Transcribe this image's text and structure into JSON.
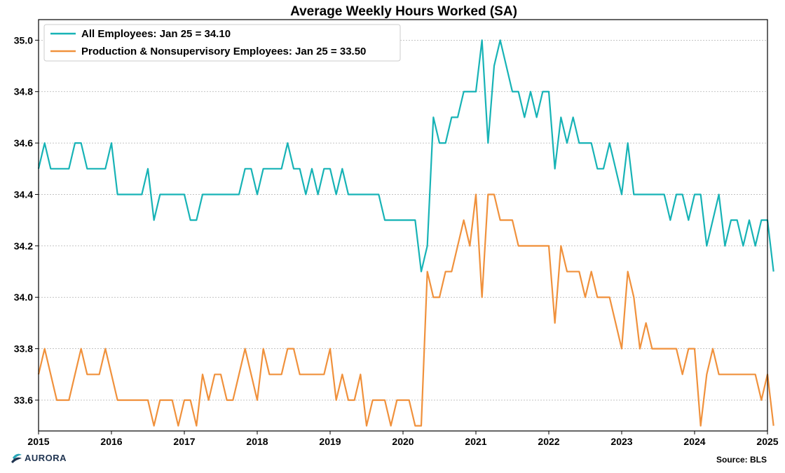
{
  "chart_data": {
    "type": "line",
    "title": "Average Weekly Hours Worked (SA)",
    "xlabel": "",
    "ylabel": "",
    "xlim": [
      2015,
      2025
    ],
    "ylim": [
      33.48,
      35.08
    ],
    "x_ticks": [
      "2015",
      "2016",
      "2017",
      "2018",
      "2019",
      "2020",
      "2021",
      "2022",
      "2023",
      "2024",
      "2025"
    ],
    "y_ticks": [
      "33.6",
      "33.8",
      "34.0",
      "34.2",
      "34.4",
      "34.6",
      "34.8",
      "35.0"
    ],
    "grid": "horizontal dotted",
    "legend_position": "top-left",
    "x_start": "2015-01",
    "x_step": "monthly",
    "series": [
      {
        "name": "All Employees: Jan 25 = 34.10",
        "color": "#17b3b6",
        "values": [
          34.5,
          34.6,
          34.5,
          34.5,
          34.5,
          34.5,
          34.6,
          34.6,
          34.5,
          34.5,
          34.5,
          34.5,
          34.6,
          34.4,
          34.4,
          34.4,
          34.4,
          34.4,
          34.5,
          34.3,
          34.4,
          34.4,
          34.4,
          34.4,
          34.4,
          34.3,
          34.3,
          34.4,
          34.4,
          34.4,
          34.4,
          34.4,
          34.4,
          34.4,
          34.5,
          34.5,
          34.4,
          34.5,
          34.5,
          34.5,
          34.5,
          34.6,
          34.5,
          34.5,
          34.4,
          34.5,
          34.4,
          34.5,
          34.5,
          34.4,
          34.5,
          34.4,
          34.4,
          34.4,
          34.4,
          34.4,
          34.4,
          34.3,
          34.3,
          34.3,
          34.3,
          34.3,
          34.3,
          34.1,
          34.2,
          34.7,
          34.6,
          34.6,
          34.7,
          34.7,
          34.8,
          34.8,
          34.8,
          35.0,
          34.6,
          34.9,
          35.0,
          34.9,
          34.8,
          34.8,
          34.7,
          34.8,
          34.7,
          34.8,
          34.8,
          34.5,
          34.7,
          34.6,
          34.7,
          34.6,
          34.6,
          34.6,
          34.5,
          34.5,
          34.6,
          34.5,
          34.4,
          34.6,
          34.4,
          34.4,
          34.4,
          34.4,
          34.4,
          34.4,
          34.3,
          34.4,
          34.4,
          34.3,
          34.4,
          34.4,
          34.2,
          34.3,
          34.4,
          34.2,
          34.3,
          34.3,
          34.2,
          34.3,
          34.2,
          34.3,
          34.3,
          34.1
        ]
      },
      {
        "name": "Production & Nonsupervisory Employees: Jan 25 = 33.50",
        "color": "#f0913c",
        "values": [
          33.7,
          33.8,
          33.7,
          33.6,
          33.6,
          33.6,
          33.7,
          33.8,
          33.7,
          33.7,
          33.7,
          33.8,
          33.7,
          33.6,
          33.6,
          33.6,
          33.6,
          33.6,
          33.6,
          33.5,
          33.6,
          33.6,
          33.6,
          33.5,
          33.6,
          33.6,
          33.5,
          33.7,
          33.6,
          33.7,
          33.7,
          33.6,
          33.6,
          33.7,
          33.8,
          33.7,
          33.6,
          33.8,
          33.7,
          33.7,
          33.7,
          33.8,
          33.8,
          33.7,
          33.7,
          33.7,
          33.7,
          33.7,
          33.8,
          33.6,
          33.7,
          33.6,
          33.6,
          33.7,
          33.5,
          33.6,
          33.6,
          33.6,
          33.5,
          33.6,
          33.6,
          33.6,
          33.5,
          33.5,
          34.1,
          34.0,
          34.0,
          34.1,
          34.1,
          34.2,
          34.3,
          34.2,
          34.4,
          34.0,
          34.4,
          34.4,
          34.3,
          34.3,
          34.3,
          34.2,
          34.2,
          34.2,
          34.2,
          34.2,
          34.2,
          33.9,
          34.2,
          34.1,
          34.1,
          34.1,
          34.0,
          34.1,
          34.0,
          34.0,
          34.0,
          33.9,
          33.8,
          34.1,
          34.0,
          33.8,
          33.9,
          33.8,
          33.8,
          33.8,
          33.8,
          33.8,
          33.7,
          33.8,
          33.8,
          33.5,
          33.7,
          33.8,
          33.7,
          33.7,
          33.7,
          33.7,
          33.7,
          33.7,
          33.7,
          33.6,
          33.7,
          33.5
        ]
      }
    ]
  },
  "footer": {
    "logo_text": "AURORA",
    "source": "Source: BLS"
  }
}
